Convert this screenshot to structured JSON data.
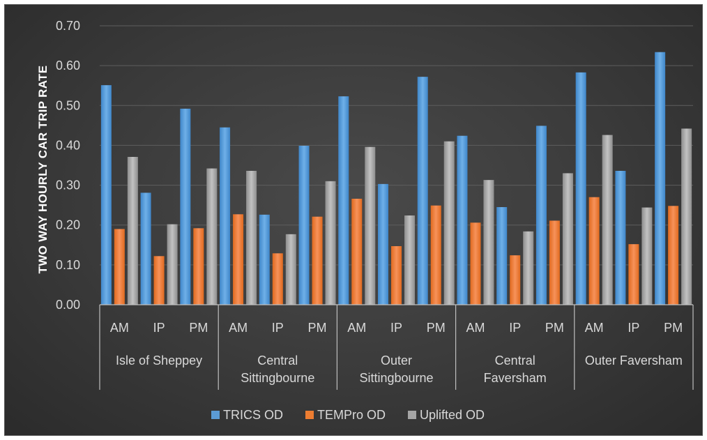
{
  "chart_data": {
    "type": "bar",
    "ylabel": "TWO WAY HOURLY CAR TRIP RATE",
    "ylim": [
      0,
      0.7
    ],
    "yticks": [
      "0.00",
      "0.10",
      "0.20",
      "0.30",
      "0.40",
      "0.50",
      "0.60",
      "0.70"
    ],
    "grid": true,
    "legend_position": "bottom",
    "groups": [
      {
        "label_lines": [
          "Isle of Sheppey"
        ],
        "categories": [
          "AM",
          "IP",
          "PM"
        ]
      },
      {
        "label_lines": [
          "Central",
          "Sittingbourne"
        ],
        "categories": [
          "AM",
          "IP",
          "PM"
        ]
      },
      {
        "label_lines": [
          "Outer",
          "Sittingbourne"
        ],
        "categories": [
          "AM",
          "IP",
          "PM"
        ]
      },
      {
        "label_lines": [
          "Central",
          "Faversham"
        ],
        "categories": [
          "AM",
          "IP",
          "PM"
        ]
      },
      {
        "label_lines": [
          "Outer Faversham"
        ],
        "categories": [
          "AM",
          "IP",
          "PM"
        ]
      }
    ],
    "series": [
      {
        "name": "TRICS OD",
        "color": "#5b9bd5",
        "values": [
          0.551,
          0.281,
          0.492,
          0.445,
          0.226,
          0.399,
          0.523,
          0.303,
          0.572,
          0.424,
          0.245,
          0.449,
          0.583,
          0.336,
          0.634
        ]
      },
      {
        "name": "TEMPro OD",
        "color": "#ed7d31",
        "values": [
          0.19,
          0.122,
          0.192,
          0.227,
          0.129,
          0.221,
          0.266,
          0.147,
          0.249,
          0.206,
          0.124,
          0.211,
          0.27,
          0.152,
          0.248
        ]
      },
      {
        "name": "Uplifted OD",
        "color": "#a5a5a5",
        "values": [
          0.371,
          0.202,
          0.342,
          0.336,
          0.177,
          0.31,
          0.396,
          0.224,
          0.41,
          0.313,
          0.184,
          0.33,
          0.426,
          0.244,
          0.442
        ]
      }
    ]
  }
}
